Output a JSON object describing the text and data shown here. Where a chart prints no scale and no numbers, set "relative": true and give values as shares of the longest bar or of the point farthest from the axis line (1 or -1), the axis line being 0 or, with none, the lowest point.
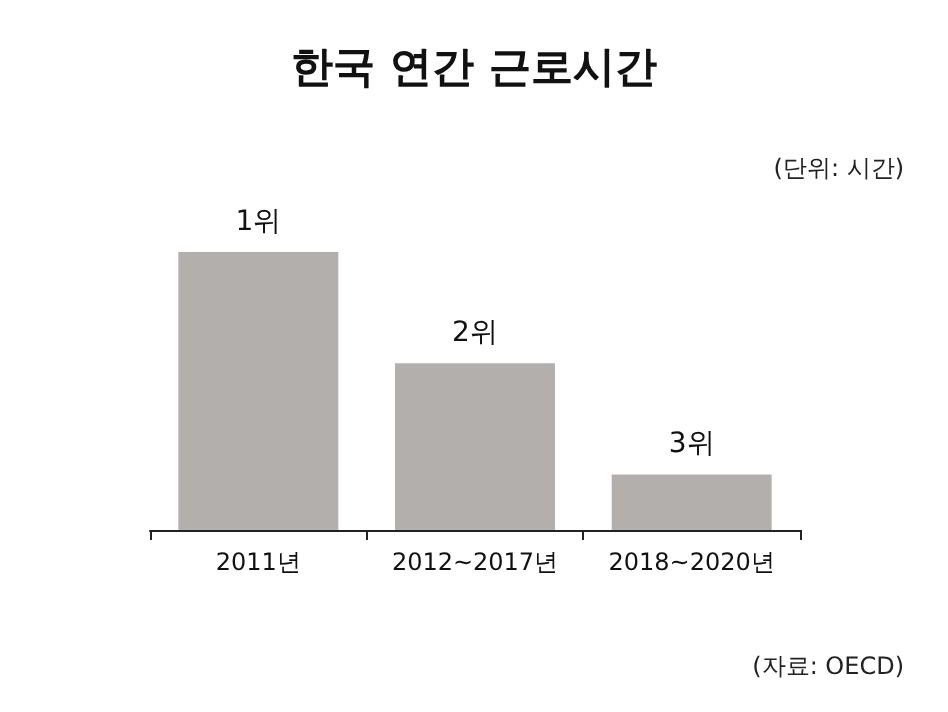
{
  "chart_data": {
    "type": "bar",
    "title": "한국 연간 근로시간",
    "relative": true,
    "categories": [
      "2011년",
      "2012~2017년",
      "2018~2020년"
    ],
    "values": [
      1,
      0.6,
      0.2
    ],
    "color": "#b3afad",
    "annotations": [
      {
        "text": "1위",
        "x": "2011년",
        "y": 1
      },
      {
        "text": "2위",
        "x": "2012~2017년",
        "y": 0.6
      },
      {
        "text": "3위",
        "x": "2018~2020년",
        "y": 0.2
      },
      "(단위: 시간)",
      "(자료: OECD)"
    ]
  }
}
